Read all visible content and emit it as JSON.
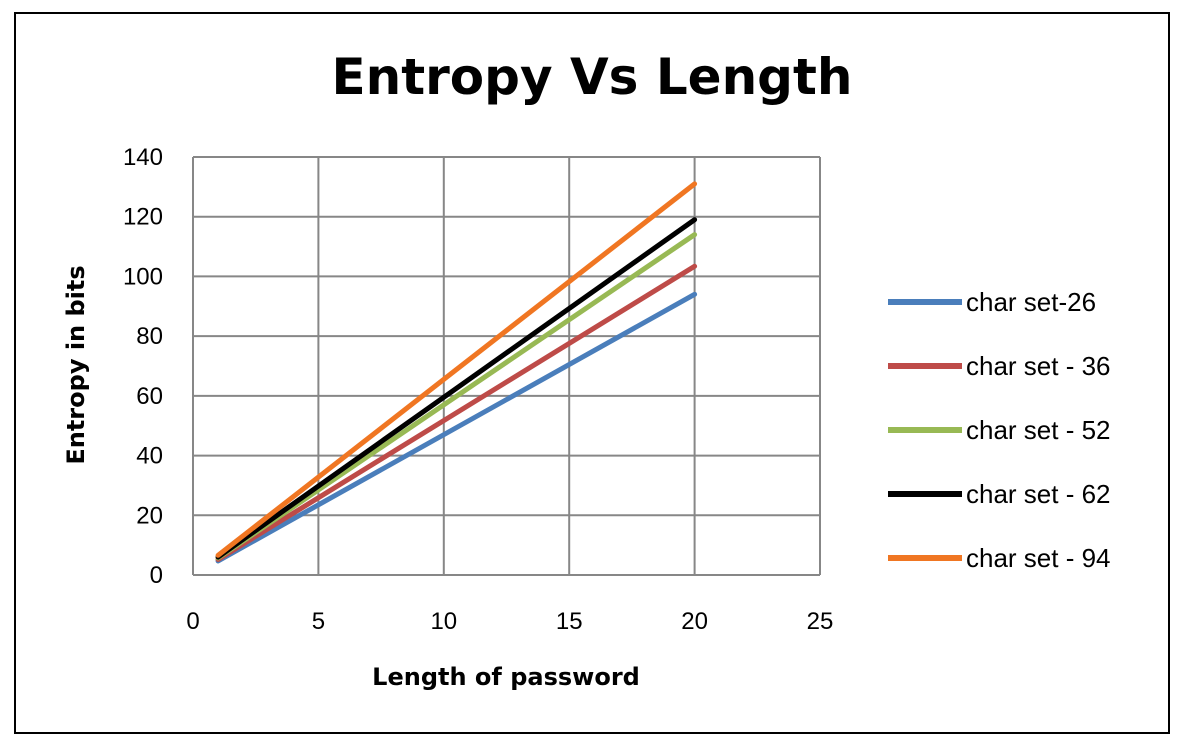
{
  "chart_data": {
    "type": "line",
    "title": "Entropy Vs Length",
    "xlabel": "Length of password",
    "ylabel": "Entropy  in bits",
    "xlim": [
      0,
      25
    ],
    "ylim": [
      0,
      140
    ],
    "xticks": [
      0,
      5,
      10,
      15,
      20,
      25
    ],
    "yticks": [
      0,
      20,
      40,
      60,
      80,
      100,
      120,
      140
    ],
    "grid": true,
    "legend_position": "right",
    "x": [
      1,
      20
    ],
    "series": [
      {
        "name": "char set-26",
        "color": "#4a7ebb",
        "values": [
          4.7,
          94
        ]
      },
      {
        "name": "char set - 36",
        "color": "#be4b48",
        "values": [
          5.2,
          103.4
        ]
      },
      {
        "name": "char set - 52",
        "color": "#98b954",
        "values": [
          5.7,
          114
        ]
      },
      {
        "name": "char set - 62",
        "color": "#000000",
        "values": [
          6.0,
          119
        ]
      },
      {
        "name": "char set - 94",
        "color": "#f07622",
        "values": [
          6.6,
          131
        ]
      }
    ]
  }
}
